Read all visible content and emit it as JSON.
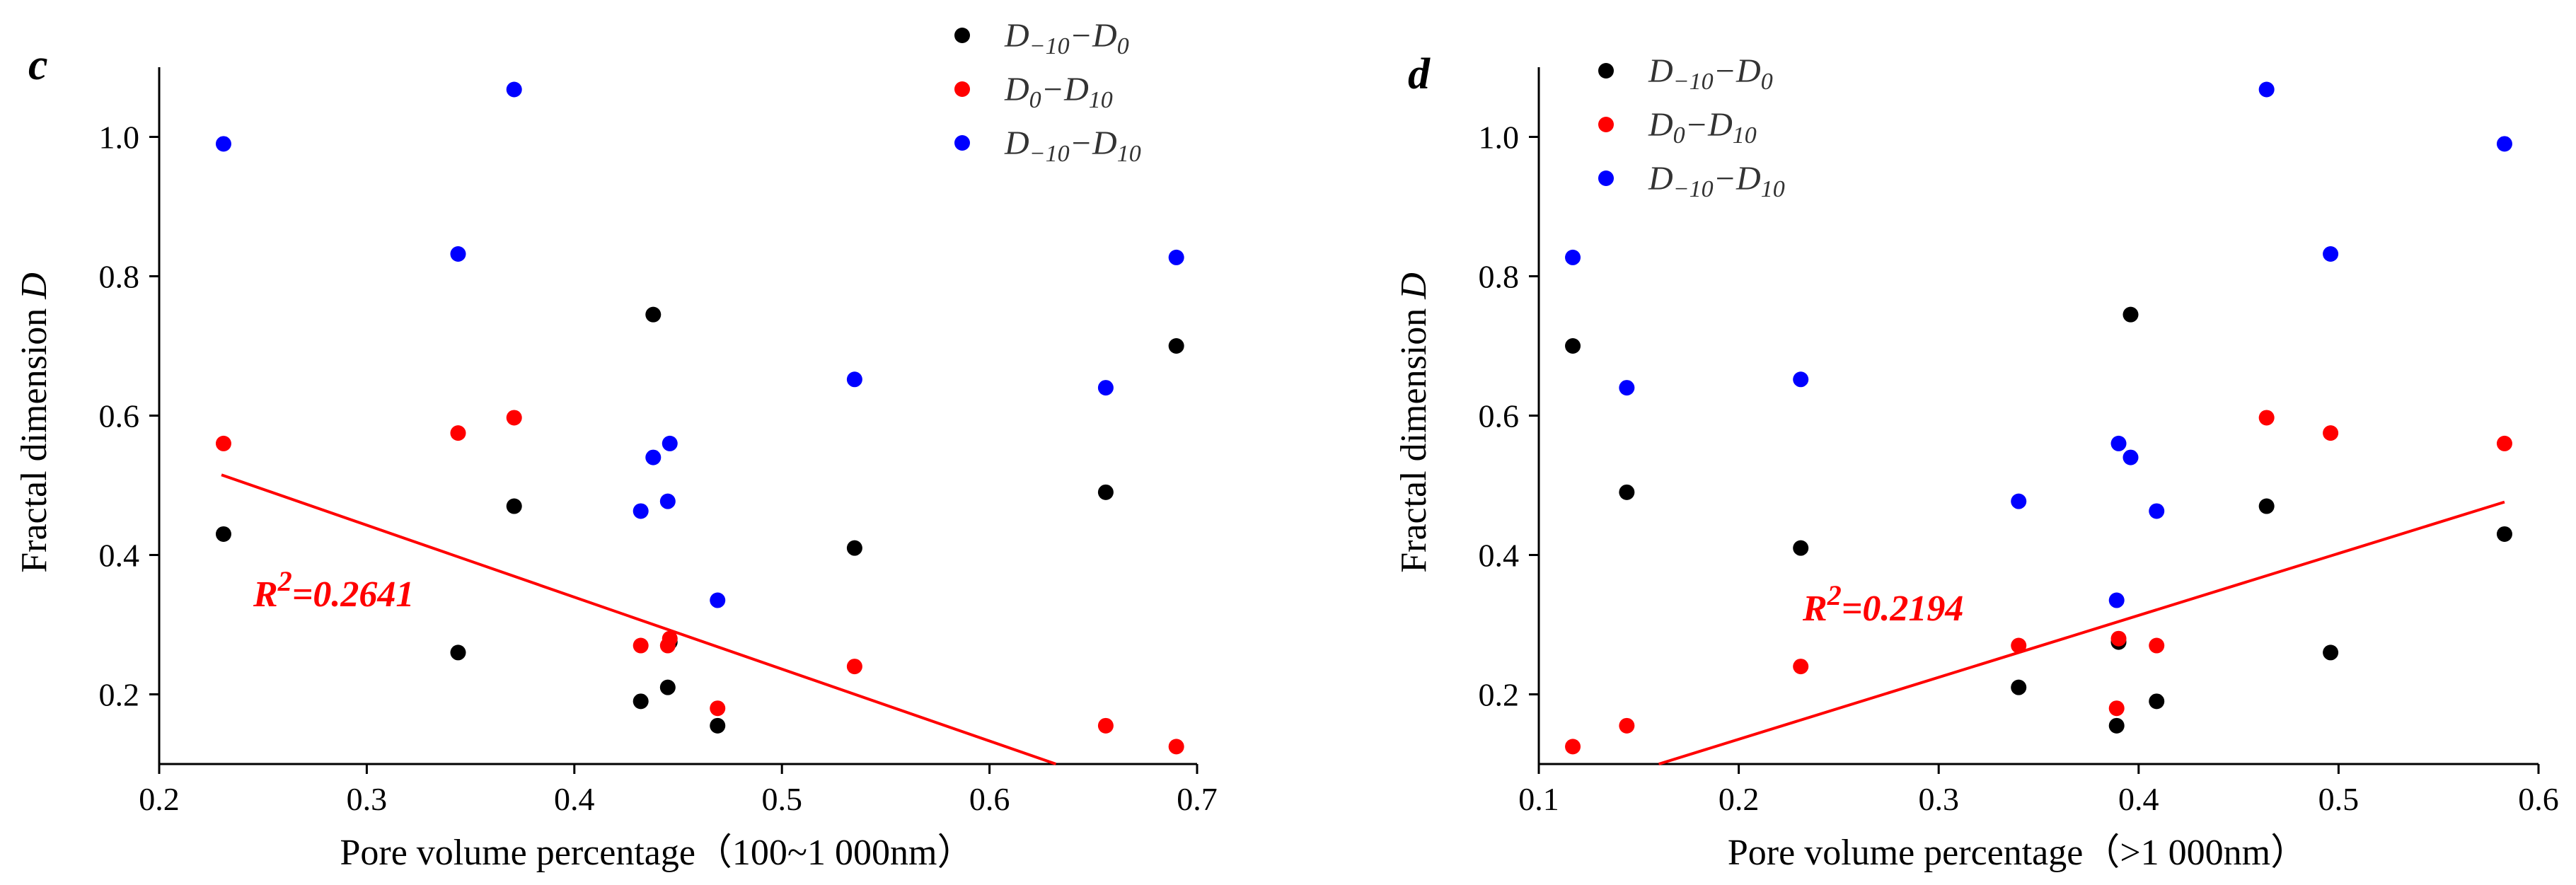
{
  "chart_data": [
    {
      "panel": "c",
      "type": "scatter",
      "xlabel": "Pore volume percentage（100~1 000nm）",
      "ylabel": "Fractal dimension D",
      "xlim": [
        0.2,
        0.7
      ],
      "ylim": [
        0.1,
        1.1
      ],
      "xticks": [
        "0.2",
        "0.3",
        "0.4",
        "0.5",
        "0.6",
        "0.7"
      ],
      "yticks": [
        "0.2",
        "0.4",
        "0.6",
        "0.8",
        "1.0"
      ],
      "legend": [
        {
          "base": "D",
          "sub1": "−10",
          "dash": "−",
          "base2": "D",
          "sub2": "0",
          "color": "#000000"
        },
        {
          "base": "D",
          "sub1": "0",
          "dash": "−",
          "base2": "D",
          "sub2": "10",
          "color": "#ff0000"
        },
        {
          "base": "D",
          "sub1": "−10",
          "dash": "−",
          "base2": "D",
          "sub2": "10",
          "color": "#0000ff"
        }
      ],
      "series": [
        {
          "name": "D−10−D0",
          "color": "#000000",
          "points": [
            [
              0.231,
              0.43
            ],
            [
              0.344,
              0.26
            ],
            [
              0.371,
              0.47
            ],
            [
              0.432,
              0.19
            ],
            [
              0.438,
              0.745
            ],
            [
              0.445,
              0.21
            ],
            [
              0.446,
              0.275
            ],
            [
              0.469,
              0.155
            ],
            [
              0.535,
              0.41
            ],
            [
              0.656,
              0.49
            ],
            [
              0.69,
              0.7
            ]
          ]
        },
        {
          "name": "D0−D10",
          "color": "#ff0000",
          "points": [
            [
              0.231,
              0.56
            ],
            [
              0.344,
              0.575
            ],
            [
              0.371,
              0.597
            ],
            [
              0.432,
              0.27
            ],
            [
              0.445,
              0.27
            ],
            [
              0.446,
              0.28
            ],
            [
              0.469,
              0.18
            ],
            [
              0.535,
              0.24
            ],
            [
              0.656,
              0.155
            ],
            [
              0.69,
              0.125
            ]
          ]
        },
        {
          "name": "D−10−D10",
          "color": "#0000ff",
          "points": [
            [
              0.231,
              0.99
            ],
            [
              0.344,
              0.832
            ],
            [
              0.371,
              1.068
            ],
            [
              0.432,
              0.463
            ],
            [
              0.438,
              0.54
            ],
            [
              0.445,
              0.477
            ],
            [
              0.446,
              0.56
            ],
            [
              0.469,
              0.335
            ],
            [
              0.535,
              0.652
            ],
            [
              0.656,
              0.64
            ],
            [
              0.69,
              0.827
            ]
          ]
        }
      ],
      "trendline": {
        "color": "#ff0000",
        "x": [
          0.23,
          0.632
        ],
        "y": [
          0.515,
          0.1
        ]
      },
      "r2_base": "R",
      "r2_exp": "2",
      "r2_value": "=0.2641"
    },
    {
      "panel": "d",
      "type": "scatter",
      "xlabel": "Pore volume percentage（>1 000nm）",
      "ylabel": "Fractal dimension D",
      "xlim": [
        0.1,
        0.6
      ],
      "ylim": [
        0.1,
        1.1
      ],
      "xticks": [
        "0.1",
        "0.2",
        "0.3",
        "0.4",
        "0.5",
        "0.6"
      ],
      "yticks": [
        "0.2",
        "0.4",
        "0.6",
        "0.8",
        "1.0"
      ],
      "legend": [
        {
          "base": "D",
          "sub1": "−10",
          "dash": "−",
          "base2": "D",
          "sub2": "0",
          "color": "#000000"
        },
        {
          "base": "D",
          "sub1": "0",
          "dash": "−",
          "base2": "D",
          "sub2": "10",
          "color": "#ff0000"
        },
        {
          "base": "D",
          "sub1": "−10",
          "dash": "−",
          "base2": "D",
          "sub2": "10",
          "color": "#0000ff"
        }
      ],
      "series": [
        {
          "name": "D−10−D0",
          "color": "#000000",
          "points": [
            [
              0.117,
              0.7
            ],
            [
              0.144,
              0.49
            ],
            [
              0.231,
              0.41
            ],
            [
              0.34,
              0.21
            ],
            [
              0.389,
              0.155
            ],
            [
              0.39,
              0.275
            ],
            [
              0.396,
              0.745
            ],
            [
              0.409,
              0.19
            ],
            [
              0.464,
              0.47
            ],
            [
              0.496,
              0.26
            ],
            [
              0.583,
              0.43
            ]
          ]
        },
        {
          "name": "D0−D10",
          "color": "#ff0000",
          "points": [
            [
              0.117,
              0.125
            ],
            [
              0.144,
              0.155
            ],
            [
              0.231,
              0.24
            ],
            [
              0.34,
              0.27
            ],
            [
              0.389,
              0.18
            ],
            [
              0.39,
              0.28
            ],
            [
              0.409,
              0.27
            ],
            [
              0.464,
              0.597
            ],
            [
              0.496,
              0.575
            ],
            [
              0.583,
              0.56
            ]
          ]
        },
        {
          "name": "D−10−D10",
          "color": "#0000ff",
          "points": [
            [
              0.117,
              0.827
            ],
            [
              0.144,
              0.64
            ],
            [
              0.231,
              0.652
            ],
            [
              0.34,
              0.477
            ],
            [
              0.389,
              0.335
            ],
            [
              0.39,
              0.56
            ],
            [
              0.396,
              0.54
            ],
            [
              0.409,
              0.463
            ],
            [
              0.464,
              1.068
            ],
            [
              0.496,
              0.832
            ],
            [
              0.583,
              0.99
            ]
          ]
        }
      ],
      "trendline": {
        "color": "#ff0000",
        "x": [
          0.16,
          0.583
        ],
        "y": [
          0.1,
          0.476
        ]
      },
      "r2_base": "R",
      "r2_exp": "2",
      "r2_value": "=0.2194"
    }
  ]
}
